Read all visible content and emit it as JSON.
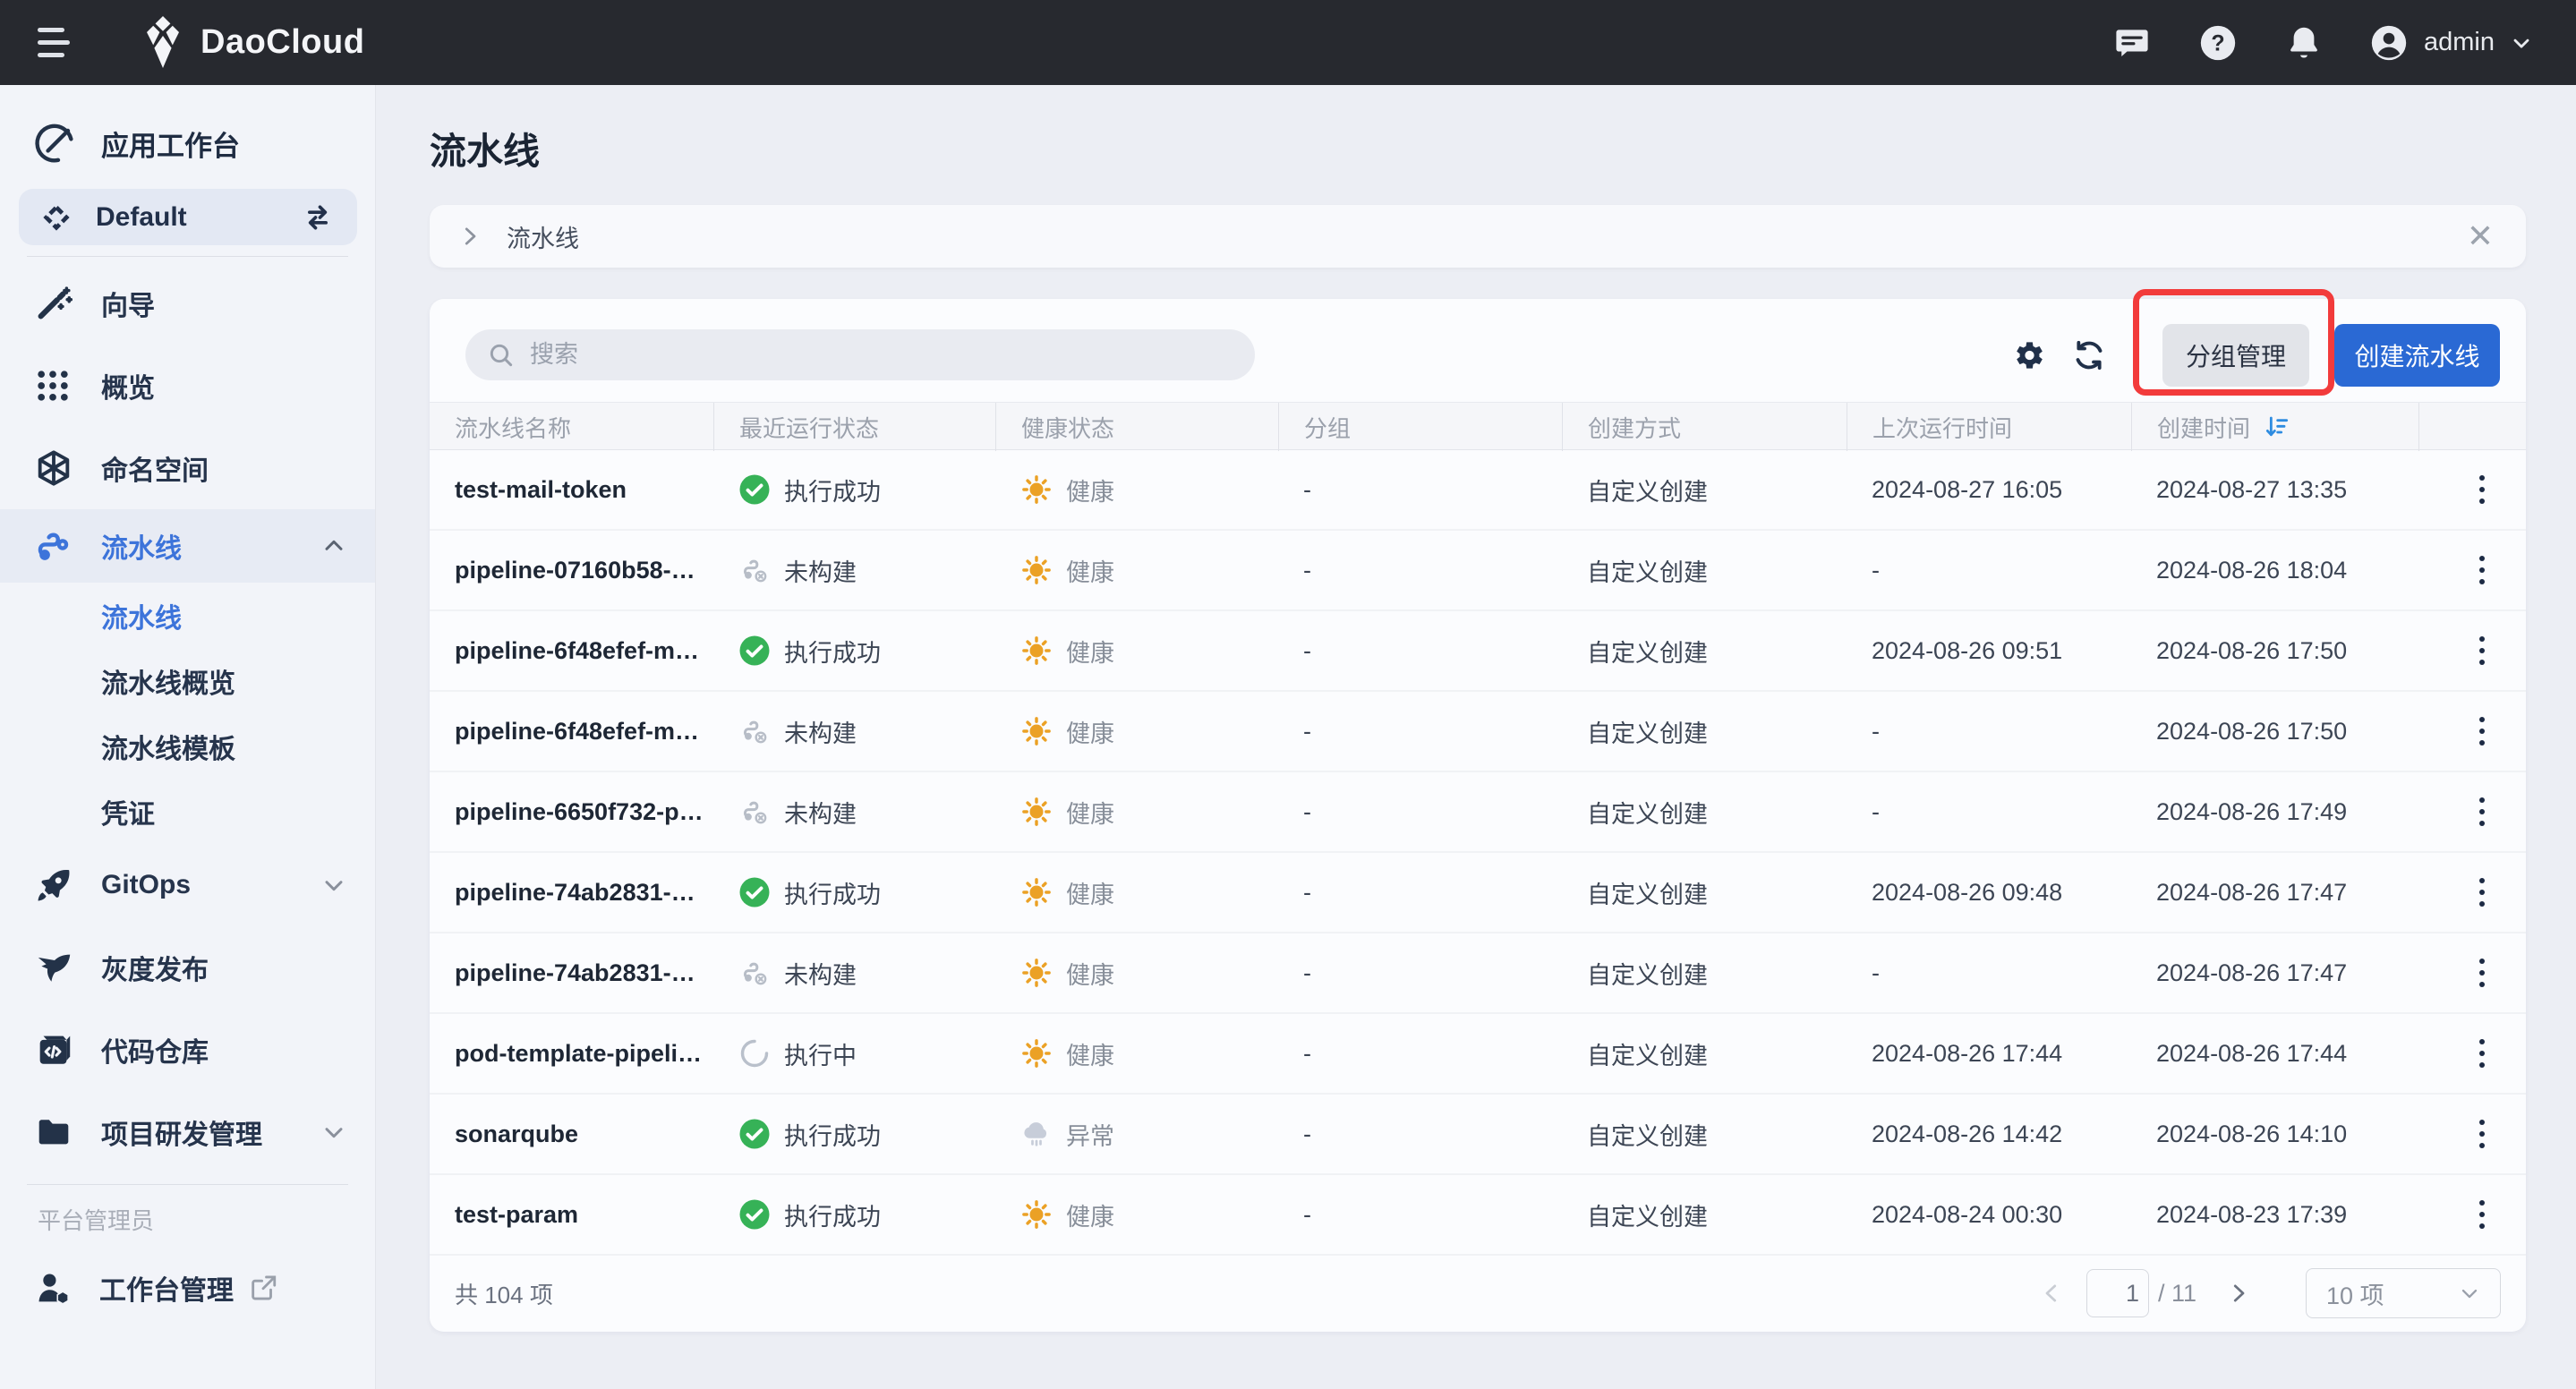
{
  "topbar": {
    "logo_text": "DaoCloud",
    "username": "admin",
    "icons": [
      "menu-icon",
      "daocloud-logo-icon",
      "chat-icon",
      "help-icon",
      "bell-icon",
      "avatar-icon",
      "caret-down-icon"
    ]
  },
  "sidebar": {
    "workspace_section_label": "应用工作台",
    "workspace_name": "Default",
    "items": [
      {
        "id": "wizard",
        "label": "向导",
        "icon": "wand-icon"
      },
      {
        "id": "overview",
        "label": "概览",
        "icon": "grid-icon"
      },
      {
        "id": "namespace",
        "label": "命名空间",
        "icon": "cube-icon"
      },
      {
        "id": "pipeline",
        "label": "流水线",
        "icon": "pipeline-icon",
        "active": true,
        "chevron": "up"
      },
      {
        "id": "pipeline-list",
        "label": "流水线",
        "sub": true,
        "active": true
      },
      {
        "id": "pipeline-overview",
        "label": "流水线概览",
        "sub": true
      },
      {
        "id": "pipeline-template",
        "label": "流水线模板",
        "sub": true
      },
      {
        "id": "credentials",
        "label": "凭证",
        "sub": true
      },
      {
        "id": "gitops",
        "label": "GitOps",
        "icon": "rocket-icon",
        "chevron": "down"
      },
      {
        "id": "gray-release",
        "label": "灰度发布",
        "icon": "bird-icon"
      },
      {
        "id": "code-repo",
        "label": "代码仓库",
        "icon": "code-repo-icon"
      },
      {
        "id": "project-dev-mgmt",
        "label": "项目研发管理",
        "icon": "folder-icon",
        "chevron": "down",
        "divider_after": true
      }
    ],
    "role_label": "平台管理员",
    "admin_item": {
      "id": "workbench-mgmt",
      "label": "工作台管理",
      "icon": "user-cube-icon",
      "external": true
    }
  },
  "page": {
    "title": "流水线",
    "breadcrumb": "流水线"
  },
  "toolbar": {
    "search_placeholder": "搜索",
    "group_manage_label": "分组管理",
    "create_label": "创建流水线"
  },
  "table": {
    "columns": [
      "流水线名称",
      "最近运行状态",
      "健康状态",
      "分组",
      "创建方式",
      "上次运行时间",
      "创建时间",
      ""
    ],
    "sorted_column": "创建时间",
    "rows": [
      {
        "name": "test-mail-token",
        "run_status": "执行成功",
        "run_status_type": "success",
        "health": "健康",
        "health_type": "healthy",
        "group": "-",
        "create_method": "自定义创建",
        "last_run": "2024-08-27 16:05",
        "created": "2024-08-27 13:35"
      },
      {
        "name": "pipeline-07160b58-…",
        "run_status": "未构建",
        "run_status_type": "notbuilt",
        "health": "健康",
        "health_type": "healthy",
        "group": "-",
        "create_method": "自定义创建",
        "last_run": "-",
        "created": "2024-08-26 18:04"
      },
      {
        "name": "pipeline-6f48efef-m…",
        "run_status": "执行成功",
        "run_status_type": "success",
        "health": "健康",
        "health_type": "healthy",
        "group": "-",
        "create_method": "自定义创建",
        "last_run": "2024-08-26 09:51",
        "created": "2024-08-26 17:50"
      },
      {
        "name": "pipeline-6f48efef-m…",
        "run_status": "未构建",
        "run_status_type": "notbuilt",
        "health": "健康",
        "health_type": "healthy",
        "group": "-",
        "create_method": "自定义创建",
        "last_run": "-",
        "created": "2024-08-26 17:50"
      },
      {
        "name": "pipeline-6650f732-p…",
        "run_status": "未构建",
        "run_status_type": "notbuilt",
        "health": "健康",
        "health_type": "healthy",
        "group": "-",
        "create_method": "自定义创建",
        "last_run": "-",
        "created": "2024-08-26 17:49"
      },
      {
        "name": "pipeline-74ab2831-…",
        "run_status": "执行成功",
        "run_status_type": "success",
        "health": "健康",
        "health_type": "healthy",
        "group": "-",
        "create_method": "自定义创建",
        "last_run": "2024-08-26 09:48",
        "created": "2024-08-26 17:47"
      },
      {
        "name": "pipeline-74ab2831-…",
        "run_status": "未构建",
        "run_status_type": "notbuilt",
        "health": "健康",
        "health_type": "healthy",
        "group": "-",
        "create_method": "自定义创建",
        "last_run": "-",
        "created": "2024-08-26 17:47"
      },
      {
        "name": "pod-template-pipeli…",
        "run_status": "执行中",
        "run_status_type": "running",
        "health": "健康",
        "health_type": "healthy",
        "group": "-",
        "create_method": "自定义创建",
        "last_run": "2024-08-26 17:44",
        "created": "2024-08-26 17:44"
      },
      {
        "name": "sonarqube",
        "run_status": "执行成功",
        "run_status_type": "success",
        "health": "异常",
        "health_type": "abnormal",
        "group": "-",
        "create_method": "自定义创建",
        "last_run": "2024-08-26 14:42",
        "created": "2024-08-26 14:10"
      },
      {
        "name": "test-param",
        "run_status": "执行成功",
        "run_status_type": "success",
        "health": "健康",
        "health_type": "healthy",
        "group": "-",
        "create_method": "自定义创建",
        "last_run": "2024-08-24 00:30",
        "created": "2024-08-23 17:39"
      }
    ]
  },
  "footer": {
    "total_label": "共 104 项",
    "page_value": "1",
    "page_total": "/ 11",
    "page_size_value": "10 项"
  },
  "colors": {
    "topbar_bg": "#27292F",
    "sidebar_bg": "#F2F4F9",
    "accent_blue": "#3D74DA",
    "primary_button_blue": "#2A69D4",
    "sort_icon_blue": "#2E8CE0",
    "success_green": "#36B257",
    "healthy_orange": "#EBA125",
    "abnormal_gray": "#C7CDD9",
    "annotation_red": "#F23B3B"
  }
}
